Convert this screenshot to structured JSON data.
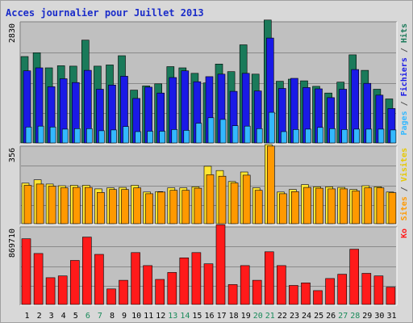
{
  "chart_data": {
    "type": "bar",
    "title": "Acces journalier pour Juillet 2013",
    "categories": [
      "1",
      "2",
      "3",
      "4",
      "5",
      "6",
      "7",
      "8",
      "9",
      "10",
      "11",
      "12",
      "13",
      "14",
      "15",
      "16",
      "17",
      "18",
      "19",
      "20",
      "21",
      "22",
      "23",
      "24",
      "25",
      "26",
      "27",
      "28",
      "29",
      "30",
      "31"
    ],
    "weekend_days": [
      "6",
      "7",
      "13",
      "14",
      "20",
      "21",
      "27",
      "28"
    ],
    "colors": {
      "hits": "#1a7a5a",
      "files": "#1a1ae6",
      "pages": "#33b8ff",
      "visits": "#ffe633",
      "sites": "#ff9900",
      "ko": "#ff1a1a",
      "weekday_label": "#000000",
      "weekend_label": "#1a8a5a",
      "panel_bg": "#c0c0c0"
    },
    "panels": [
      {
        "key": "top",
        "ymax": 2830,
        "ymax_label": "2830",
        "right_labels": [
          {
            "text": "Pages",
            "color": "#33b8ff"
          },
          {
            "text": " / ",
            "color": "#555555"
          },
          {
            "text": "Fichiers",
            "color": "#1a1ae6"
          },
          {
            "text": " / ",
            "color": "#555555"
          },
          {
            "text": "Hits",
            "color": "#1a7a5a"
          }
        ],
        "series": [
          {
            "name": "Hits",
            "color": "#1a7a5a",
            "values": [
              2060,
              2150,
              1790,
              1840,
              1830,
              2450,
              1830,
              1860,
              2080,
              1260,
              1360,
              1410,
              1820,
              1790,
              1660,
              1430,
              1880,
              1700,
              2340,
              1640,
              2930,
              1470,
              1520,
              1480,
              1350,
              1190,
              1450,
              2100,
              1730,
              1280,
              1050
            ]
          },
          {
            "name": "Fichiers",
            "color": "#1a1ae6",
            "values": [
              1720,
              1790,
              1340,
              1530,
              1440,
              1730,
              1280,
              1380,
              1590,
              1060,
              1330,
              1190,
              1560,
              1720,
              1460,
              1580,
              1640,
              1230,
              1660,
              1240,
              2500,
              1300,
              1540,
              1320,
              1290,
              1080,
              1280,
              1750,
              1420,
              1140,
              820
            ]
          },
          {
            "name": "Pages",
            "color": "#33b8ff",
            "values": [
              380,
              400,
              380,
              330,
              340,
              340,
              290,
              310,
              390,
              270,
              280,
              280,
              320,
              300,
              470,
              600,
              560,
              410,
              400,
              340,
              730,
              270,
              320,
              330,
              370,
              340,
              320,
              330,
              330,
              330,
              310
            ]
          }
        ]
      },
      {
        "key": "middle",
        "ymax": 356,
        "ymax_label": "356",
        "right_labels": [
          {
            "text": "Sites",
            "color": "#ff9900"
          },
          {
            "text": " / ",
            "color": "#555555"
          },
          {
            "text": "Visites",
            "color": "#e6c800"
          }
        ],
        "series": [
          {
            "name": "Visites",
            "color": "#ffe633",
            "values": [
              192,
              208,
              188,
              180,
              182,
              182,
              165,
              170,
              172,
              182,
              150,
              152,
              170,
              170,
              175,
              272,
              252,
              200,
              245,
              170,
              375,
              150,
              162,
              185,
              175,
              175,
              172,
              162,
              180,
              175,
              150
            ]
          },
          {
            "name": "Sites",
            "color": "#ff9900",
            "values": [
              182,
              188,
              178,
              170,
              172,
              172,
              148,
              162,
              162,
              170,
              142,
              150,
              158,
              158,
              168,
              232,
              225,
              193,
              230,
              158,
              368,
              142,
              152,
              172,
              168,
              165,
              165,
              155,
              170,
              170,
              147
            ]
          }
        ]
      },
      {
        "key": "bottom",
        "ymax": 869710,
        "ymax_label": "869710",
        "right_labels": [
          {
            "text": "Ko",
            "color": "#ff1a1a"
          }
        ],
        "series": [
          {
            "name": "Ko",
            "color": "#ff1a1a",
            "values": [
              760000,
              590000,
              310000,
              330000,
              510000,
              780000,
              580000,
              180000,
              280000,
              600000,
              450000,
              290000,
              370000,
              540000,
              600000,
              470000,
              930000,
              230000,
              450000,
              280000,
              610000,
              450000,
              220000,
              250000,
              160000,
              300000,
              350000,
              640000,
              360000,
              330000,
              200000
            ]
          }
        ]
      }
    ]
  }
}
